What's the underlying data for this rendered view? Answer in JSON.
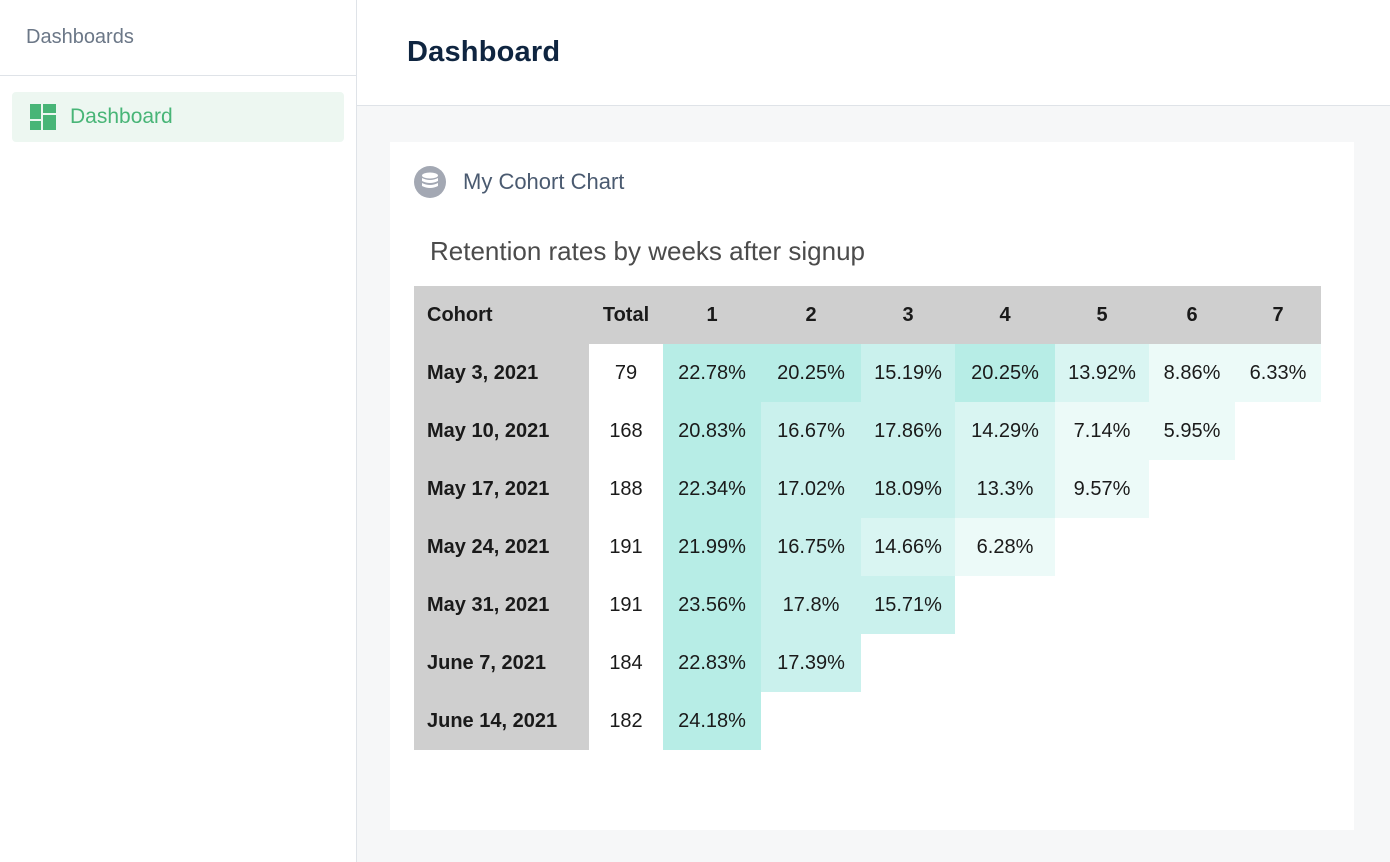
{
  "sidebar": {
    "header": "Dashboards",
    "items": [
      {
        "label": "Dashboard",
        "icon": "dashboard-grid-icon",
        "active": true
      }
    ]
  },
  "topbar": {
    "title": "Dashboard"
  },
  "card": {
    "icon": "database-icon",
    "title": "My Cohort Chart",
    "chart_title": "Retention rates by weeks after signup"
  },
  "colors": {
    "accent_green": "#48b577",
    "header_gray": "#cfcfcf",
    "heat_scale": [
      "#ecfaf8",
      "#d9f5f2",
      "#caf1ed",
      "#b7ede6"
    ]
  },
  "chart_data": {
    "type": "table",
    "title": "Retention rates by weeks after signup",
    "columns": [
      "Cohort",
      "Total",
      "1",
      "2",
      "3",
      "4",
      "5",
      "6",
      "7"
    ],
    "rows": [
      {
        "cohort": "May 3, 2021",
        "total": "79",
        "values": [
          "22.78%",
          "20.25%",
          "15.19%",
          "20.25%",
          "13.92%",
          "8.86%",
          "6.33%"
        ]
      },
      {
        "cohort": "May 10, 2021",
        "total": "168",
        "values": [
          "20.83%",
          "16.67%",
          "17.86%",
          "14.29%",
          "7.14%",
          "5.95%"
        ]
      },
      {
        "cohort": "May 17, 2021",
        "total": "188",
        "values": [
          "22.34%",
          "17.02%",
          "18.09%",
          "13.3%",
          "9.57%"
        ]
      },
      {
        "cohort": "May 24, 2021",
        "total": "191",
        "values": [
          "21.99%",
          "16.75%",
          "14.66%",
          "6.28%"
        ]
      },
      {
        "cohort": "May 31, 2021",
        "total": "191",
        "values": [
          "23.56%",
          "17.8%",
          "15.71%"
        ]
      },
      {
        "cohort": "June 7, 2021",
        "total": "184",
        "values": [
          "22.83%",
          "17.39%"
        ]
      },
      {
        "cohort": "June 14, 2021",
        "total": "182",
        "values": [
          "24.18%"
        ]
      }
    ]
  }
}
